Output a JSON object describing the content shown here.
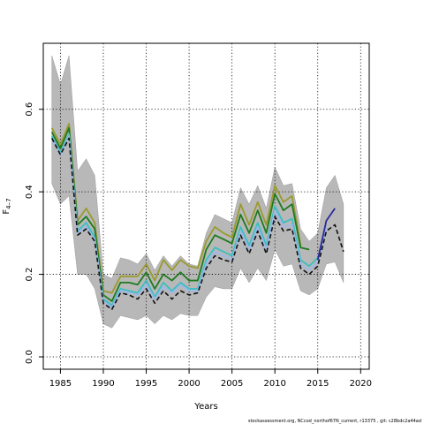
{
  "chart_data": {
    "type": "line",
    "xlabel": "Years",
    "ylabel": "F",
    "ylabel_subscript": "4–7",
    "xlim": [
      1983,
      2021
    ],
    "ylim": [
      -0.03,
      0.76
    ],
    "x_ticks": [
      1985,
      1990,
      1995,
      2000,
      2005,
      2010,
      2015,
      2020
    ],
    "y_ticks": [
      0.0,
      0.2,
      0.4,
      0.6
    ],
    "y_tick_labels": [
      "0.0",
      "0.2",
      "0.4",
      "0.6"
    ],
    "grid": true,
    "footer": "stockassessment.org, NCcod_northof67N_current, r13375 , git: c28bdc2a44ad",
    "colors": {
      "band": "#b8b8b8",
      "olive": "#9a9a2e",
      "green": "#1e7a1e",
      "cyan": "#3bbfc0",
      "lightblue": "#9db8e8",
      "navy": "#2a2a9a",
      "black": "#111111"
    },
    "band": {
      "x": [
        1984,
        1985,
        1986,
        1987,
        1988,
        1989,
        1990,
        1991,
        1992,
        1993,
        1994,
        1995,
        1996,
        1997,
        1998,
        1999,
        2000,
        2001,
        2002,
        2003,
        2004,
        2005,
        2006,
        2007,
        2008,
        2009,
        2010,
        2011,
        2012,
        2013,
        2014,
        2015,
        2016,
        2017,
        2018
      ],
      "upper": [
        0.73,
        0.66,
        0.73,
        0.45,
        0.48,
        0.44,
        0.2,
        0.19,
        0.24,
        0.235,
        0.225,
        0.25,
        0.21,
        0.245,
        0.22,
        0.245,
        0.225,
        0.22,
        0.3,
        0.345,
        0.335,
        0.325,
        0.41,
        0.37,
        0.415,
        0.36,
        0.46,
        0.415,
        0.42,
        0.31,
        0.28,
        0.3,
        0.41,
        0.44,
        0.37
      ],
      "lower": [
        0.42,
        0.37,
        0.39,
        0.2,
        0.2,
        0.165,
        0.08,
        0.07,
        0.1,
        0.095,
        0.09,
        0.1,
        0.08,
        0.1,
        0.09,
        0.105,
        0.1,
        0.1,
        0.145,
        0.17,
        0.165,
        0.165,
        0.215,
        0.18,
        0.215,
        0.185,
        0.26,
        0.22,
        0.225,
        0.16,
        0.15,
        0.165,
        0.225,
        0.23,
        0.18
      ]
    },
    "series": [
      {
        "color_key": "olive",
        "x": [
          1984,
          1985,
          1986,
          1987,
          1988,
          1989,
          1990,
          1991,
          1992,
          1993,
          1994,
          1995,
          1996,
          1997,
          1998,
          1999,
          2000,
          2001,
          2002,
          2003,
          2004,
          2005,
          2006,
          2007,
          2008,
          2009,
          2010,
          2011,
          2012,
          2013
        ],
        "values": [
          0.555,
          0.515,
          0.565,
          0.33,
          0.36,
          0.325,
          0.16,
          0.155,
          0.195,
          0.195,
          0.195,
          0.225,
          0.185,
          0.235,
          0.21,
          0.235,
          0.22,
          0.215,
          0.28,
          0.315,
          0.3,
          0.29,
          0.37,
          0.32,
          0.375,
          0.32,
          0.415,
          0.375,
          0.39,
          0.27
        ]
      },
      {
        "color_key": "green",
        "x": [
          1984,
          1985,
          1986,
          1987,
          1988,
          1989,
          1990,
          1991,
          1992,
          1993,
          1994,
          1995,
          1996,
          1997,
          1998,
          1999,
          2000,
          2001,
          2002,
          2003,
          2004,
          2005,
          2006,
          2007,
          2008,
          2009,
          2010,
          2011,
          2012,
          2013,
          2014
        ],
        "values": [
          0.545,
          0.505,
          0.555,
          0.32,
          0.34,
          0.31,
          0.15,
          0.135,
          0.18,
          0.18,
          0.175,
          0.205,
          0.165,
          0.2,
          0.185,
          0.205,
          0.185,
          0.185,
          0.26,
          0.295,
          0.285,
          0.275,
          0.345,
          0.3,
          0.355,
          0.3,
          0.395,
          0.355,
          0.37,
          0.265,
          0.26
        ]
      },
      {
        "color_key": "cyan",
        "x": [
          1984,
          1985,
          1986,
          1987,
          1988,
          1989,
          1990,
          1991,
          1992,
          1993,
          1994,
          1995,
          1996,
          1997,
          1998,
          1999,
          2000,
          2001,
          2002,
          2003,
          2004,
          2005,
          2006,
          2007,
          2008,
          2009,
          2010,
          2011,
          2012,
          2013,
          2014,
          2015
        ],
        "values": [
          0.535,
          0.495,
          0.54,
          0.305,
          0.325,
          0.29,
          0.14,
          0.125,
          0.165,
          0.16,
          0.155,
          0.185,
          0.145,
          0.18,
          0.16,
          0.18,
          0.165,
          0.165,
          0.235,
          0.265,
          0.255,
          0.245,
          0.315,
          0.27,
          0.325,
          0.27,
          0.365,
          0.325,
          0.335,
          0.235,
          0.22,
          0.24
        ]
      },
      {
        "color_key": "lightblue",
        "x": [
          1984,
          1985,
          1986,
          1987,
          1988,
          1989,
          1990,
          1991,
          1992,
          1993,
          1994,
          1995,
          1996,
          1997,
          1998,
          1999,
          2000,
          2001,
          2002,
          2003,
          2004,
          2005,
          2006,
          2007,
          2008,
          2009,
          2010,
          2011,
          2012,
          2013,
          2014,
          2015,
          2016
        ],
        "values": [
          0.53,
          0.49,
          0.535,
          0.3,
          0.315,
          0.285,
          0.135,
          0.12,
          0.16,
          0.155,
          0.15,
          0.175,
          0.14,
          0.17,
          0.155,
          0.175,
          0.16,
          0.16,
          0.225,
          0.255,
          0.245,
          0.235,
          0.305,
          0.26,
          0.315,
          0.26,
          0.355,
          0.315,
          0.32,
          0.225,
          0.21,
          0.23,
          0.315
        ]
      },
      {
        "color_key": "navy",
        "x": [
          2015,
          2016,
          2017
        ],
        "values": [
          0.235,
          0.33,
          0.36
        ]
      },
      {
        "color_key": "black",
        "dashed": true,
        "x": [
          1984,
          1985,
          1986,
          1987,
          1988,
          1989,
          1990,
          1991,
          1992,
          1993,
          1994,
          1995,
          1996,
          1997,
          1998,
          1999,
          2000,
          2001,
          2002,
          2003,
          2004,
          2005,
          2006,
          2007,
          2008,
          2009,
          2010,
          2011,
          2012,
          2013,
          2014,
          2015,
          2016,
          2017,
          2018
        ],
        "values": [
          0.53,
          0.49,
          0.53,
          0.295,
          0.31,
          0.28,
          0.13,
          0.115,
          0.155,
          0.15,
          0.14,
          0.165,
          0.13,
          0.16,
          0.14,
          0.16,
          0.15,
          0.155,
          0.215,
          0.245,
          0.235,
          0.23,
          0.295,
          0.25,
          0.305,
          0.25,
          0.34,
          0.305,
          0.31,
          0.215,
          0.2,
          0.22,
          0.305,
          0.32,
          0.255
        ]
      }
    ]
  }
}
